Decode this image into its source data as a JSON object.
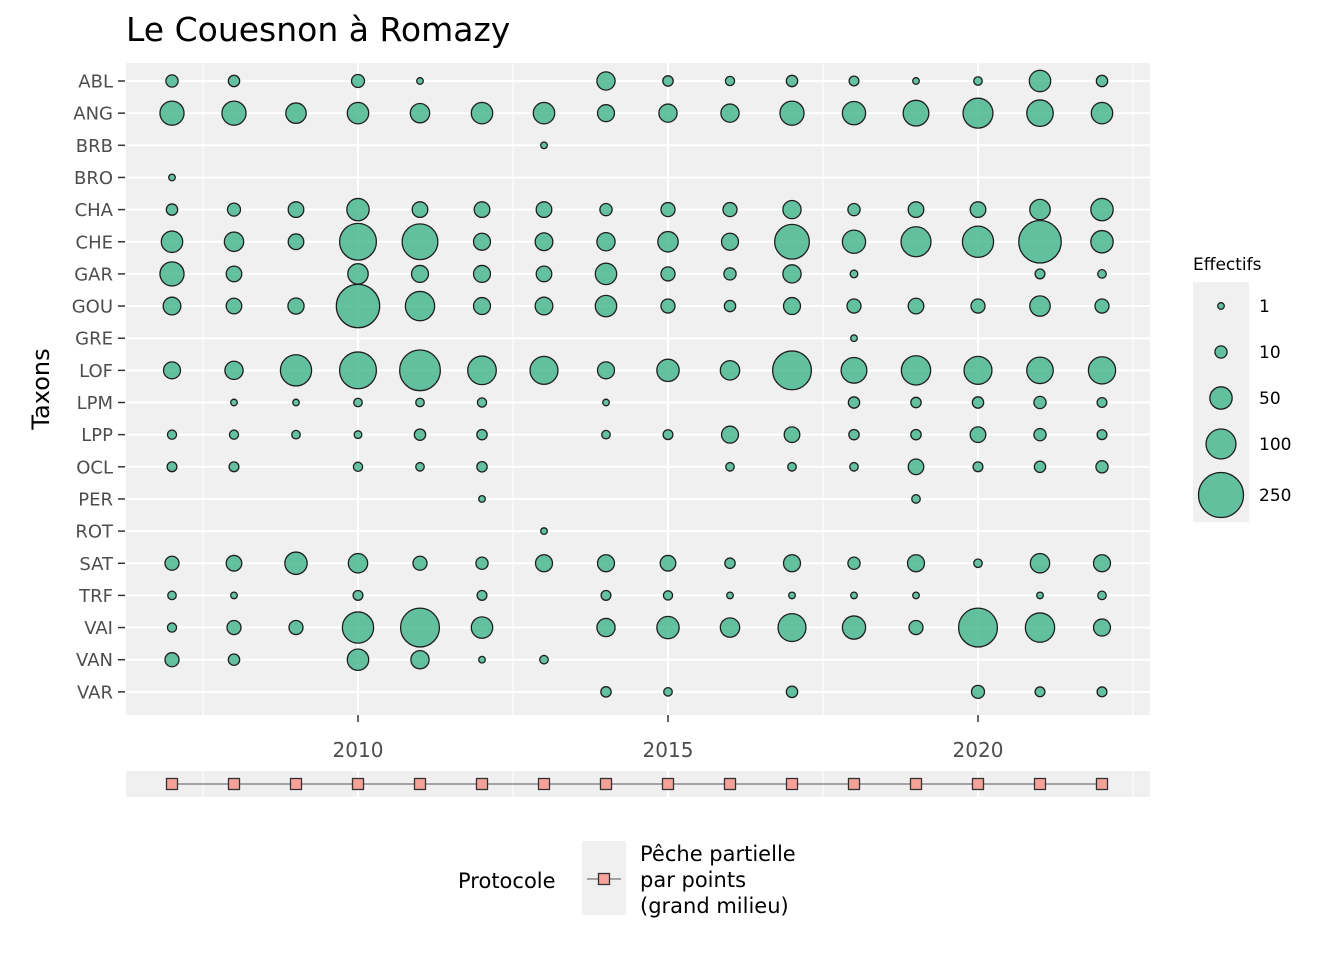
{
  "chart_data": {
    "type": "scatter",
    "title": "Le Couesnon à Romazy",
    "ylabel": "Taxons",
    "xlabel": "",
    "xlim": [
      2006.25,
      2022.75
    ],
    "x_ticks": [
      2010,
      2015,
      2020
    ],
    "years": [
      2007,
      2008,
      2009,
      2010,
      2011,
      2012,
      2013,
      2014,
      2015,
      2016,
      2017,
      2018,
      2019,
      2020,
      2021,
      2022
    ],
    "categories": [
      "ABL",
      "ANG",
      "BRB",
      "BRO",
      "CHA",
      "CHE",
      "GAR",
      "GOU",
      "GRE",
      "LOF",
      "LPM",
      "LPP",
      "OCL",
      "PER",
      "ROT",
      "SAT",
      "TRF",
      "VAI",
      "VAN",
      "VAR"
    ],
    "series": [
      {
        "taxon": "ABL",
        "values": [
          10,
          8,
          null,
          12,
          1,
          null,
          null,
          30,
          6,
          4,
          8,
          5,
          1,
          3,
          45,
          8
        ]
      },
      {
        "taxon": "ANG",
        "values": [
          60,
          60,
          40,
          45,
          35,
          45,
          45,
          25,
          30,
          30,
          60,
          55,
          70,
          100,
          75,
          45
        ]
      },
      {
        "taxon": "BRB",
        "values": [
          null,
          null,
          null,
          null,
          null,
          null,
          1,
          null,
          null,
          null,
          null,
          null,
          null,
          null,
          null,
          null
        ]
      },
      {
        "taxon": "BRO",
        "values": [
          1,
          null,
          null,
          null,
          null,
          null,
          null,
          null,
          null,
          null,
          null,
          null,
          null,
          null,
          null,
          null
        ]
      },
      {
        "taxon": "CHA",
        "values": [
          8,
          12,
          20,
          50,
          20,
          20,
          20,
          10,
          15,
          15,
          30,
          10,
          20,
          20,
          40,
          50
        ]
      },
      {
        "taxon": "CHE",
        "values": [
          45,
          35,
          20,
          160,
          150,
          25,
          28,
          30,
          40,
          25,
          140,
          55,
          100,
          110,
          220,
          50
        ]
      },
      {
        "taxon": "GAR",
        "values": [
          60,
          20,
          null,
          40,
          25,
          25,
          20,
          45,
          15,
          10,
          30,
          2,
          null,
          null,
          5,
          3
        ]
      },
      {
        "taxon": "GOU",
        "values": [
          28,
          20,
          22,
          230,
          95,
          25,
          28,
          45,
          15,
          8,
          25,
          15,
          20,
          15,
          40,
          15
        ]
      },
      {
        "taxon": "GRE",
        "values": [
          null,
          null,
          null,
          null,
          null,
          null,
          null,
          null,
          null,
          null,
          null,
          1,
          null,
          null,
          null,
          null
        ]
      },
      {
        "taxon": "LOF",
        "values": [
          25,
          30,
          110,
          160,
          200,
          90,
          85,
          25,
          50,
          35,
          180,
          70,
          95,
          85,
          75,
          80
        ]
      },
      {
        "taxon": "LPM",
        "values": [
          null,
          1,
          1,
          3,
          3,
          4,
          null,
          1,
          null,
          null,
          null,
          8,
          6,
          8,
          10,
          5
        ]
      },
      {
        "taxon": "LPP",
        "values": [
          4,
          4,
          3,
          2,
          8,
          6,
          null,
          3,
          5,
          25,
          20,
          6,
          6,
          20,
          10,
          5
        ]
      },
      {
        "taxon": "OCL",
        "values": [
          5,
          5,
          null,
          4,
          3,
          6,
          null,
          null,
          null,
          3,
          3,
          3,
          20,
          5,
          8,
          10
        ]
      },
      {
        "taxon": "PER",
        "values": [
          null,
          null,
          null,
          null,
          null,
          1,
          null,
          null,
          null,
          null,
          null,
          null,
          3,
          null,
          null,
          null
        ]
      },
      {
        "taxon": "ROT",
        "values": [
          null,
          null,
          null,
          null,
          null,
          null,
          1,
          null,
          null,
          null,
          null,
          null,
          null,
          null,
          null,
          null
        ]
      },
      {
        "taxon": "SAT",
        "values": [
          15,
          20,
          50,
          35,
          15,
          10,
          25,
          25,
          20,
          6,
          25,
          10,
          25,
          3,
          35,
          25
        ]
      },
      {
        "taxon": "TRF",
        "values": [
          3,
          1,
          null,
          5,
          null,
          5,
          null,
          5,
          4,
          1,
          1,
          1,
          1,
          null,
          1,
          3
        ]
      },
      {
        "taxon": "VAI",
        "values": [
          4,
          15,
          15,
          110,
          180,
          45,
          null,
          30,
          50,
          35,
          85,
          55,
          15,
          180,
          95,
          25
        ]
      },
      {
        "taxon": "VAN",
        "values": [
          15,
          8,
          null,
          45,
          30,
          1,
          3,
          null,
          null,
          null,
          null,
          null,
          null,
          null,
          null,
          null
        ]
      },
      {
        "taxon": "VAR",
        "values": [
          null,
          null,
          null,
          null,
          null,
          null,
          null,
          6,
          3,
          null,
          8,
          null,
          null,
          12,
          5,
          5
        ]
      }
    ],
    "size_legend": {
      "title": "Effectifs",
      "breaks": [
        "1",
        "10",
        "50",
        "100",
        "250"
      ],
      "break_values": [
        1,
        10,
        50,
        100,
        250
      ],
      "max_value": 250
    },
    "protocol_legend": {
      "title": "Protocole",
      "label": "Pêche partielle\npar points\n(grand milieu)",
      "years": [
        2007,
        2008,
        2009,
        2010,
        2011,
        2012,
        2013,
        2014,
        2015,
        2016,
        2017,
        2018,
        2019,
        2020,
        2021,
        2022
      ]
    },
    "colors": {
      "points": "#3eb489",
      "point_stroke": "#1f1f1f",
      "panel": "#f0f0f0",
      "grid": "#ffffff",
      "protocol": "#f4a29a"
    },
    "grid": true,
    "legend_placement": "right"
  }
}
